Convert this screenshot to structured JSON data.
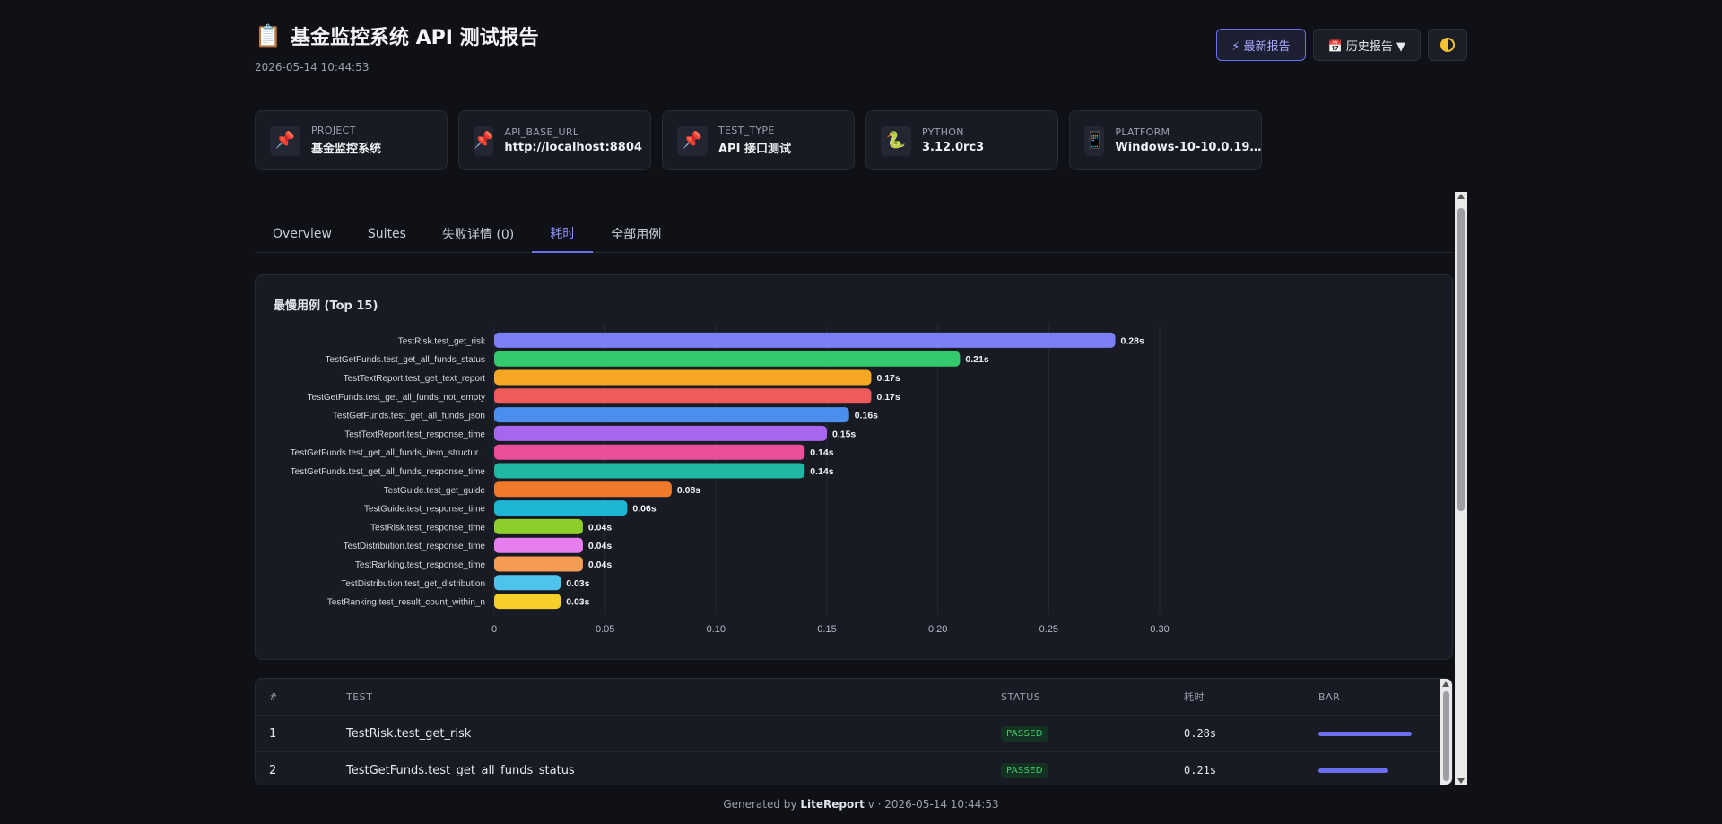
{
  "header": {
    "title": "基金监控系统 API 测试报告",
    "timestamp": "2026-05-14 10:44:53",
    "latest_label": "⚡ 最新报告",
    "history_label": "📅 历史报告 ▼"
  },
  "env": [
    {
      "key": "PROJECT",
      "value": "基金监控系统",
      "icon": "📌"
    },
    {
      "key": "API_BASE_URL",
      "value": "http://localhost:8804",
      "icon": "📌"
    },
    {
      "key": "TEST_TYPE",
      "value": "API 接口测试",
      "icon": "📌"
    },
    {
      "key": "PYTHON",
      "value": "3.12.0rc3",
      "icon": "🐍"
    },
    {
      "key": "PLATFORM",
      "value": "Windows-10-10.0.19…",
      "icon": "📱"
    }
  ],
  "tabs": [
    "Overview",
    "Suites",
    "失败详情 (0)",
    "耗时",
    "全部用例"
  ],
  "chart_title": "最慢用例 (Top 15)",
  "chart_data": {
    "type": "bar",
    "orientation": "horizontal",
    "title": "最慢用例 (Top 15)",
    "categories": [
      "TestRisk.test_get_risk",
      "TestGetFunds.test_get_all_funds_status",
      "TestTextReport.test_get_text_report",
      "TestGetFunds.test_get_all_funds_not_empty",
      "TestGetFunds.test_get_all_funds_json",
      "TestTextReport.test_response_time",
      "TestGetFunds.test_get_all_funds_item_structur...",
      "TestGetFunds.test_get_all_funds_response_time",
      "TestGuide.test_get_guide",
      "TestGuide.test_response_time",
      "TestRisk.test_response_time",
      "TestDistribution.test_response_time",
      "TestRanking.test_response_time",
      "TestDistribution.test_get_distribution",
      "TestRanking.test_result_count_within_n"
    ],
    "values": [
      0.28,
      0.21,
      0.17,
      0.17,
      0.16,
      0.15,
      0.14,
      0.14,
      0.08,
      0.06,
      0.04,
      0.04,
      0.04,
      0.03,
      0.03
    ],
    "value_labels": [
      "0.28s",
      "0.21s",
      "0.17s",
      "0.17s",
      "0.16s",
      "0.15s",
      "0.14s",
      "0.14s",
      "0.08s",
      "0.06s",
      "0.04s",
      "0.04s",
      "0.04s",
      "0.03s",
      "0.03s"
    ],
    "colors": [
      "#7c7ff5",
      "#34c96b",
      "#f5a623",
      "#ef5b5b",
      "#4a8ef0",
      "#a866f0",
      "#ec4f9a",
      "#1fb8a3",
      "#f07a2a",
      "#1fb6d6",
      "#8ccf2a",
      "#e67ef0",
      "#f79a52",
      "#4ec3ec",
      "#f7cf2a"
    ],
    "xlim": [
      0,
      0.3
    ],
    "xticks": [
      "0",
      "0.05",
      "0.10",
      "0.15",
      "0.20",
      "0.25",
      "0.30"
    ],
    "grid": true
  },
  "table": {
    "headers": [
      "#",
      "TEST",
      "STATUS",
      "耗时",
      "BAR"
    ],
    "rows": [
      {
        "idx": "1",
        "name": "TestRisk.test_get_risk",
        "status": "PASSED",
        "dur": "0.28s",
        "ratio": 1.0
      },
      {
        "idx": "2",
        "name": "TestGetFunds.test_get_all_funds_status",
        "status": "PASSED",
        "dur": "0.21s",
        "ratio": 0.75
      }
    ]
  },
  "footer": {
    "prefix": "Generated by",
    "brand": "LiteReport",
    "suffix": "v · 2026-05-14 10:44:53"
  }
}
